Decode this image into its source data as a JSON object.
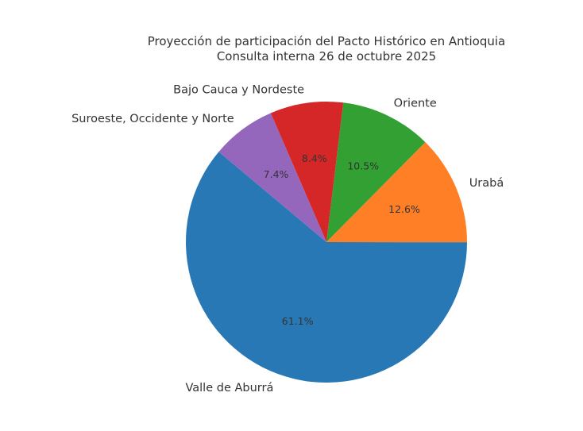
{
  "chart_data": {
    "type": "pie",
    "title": [
      "Proyección de participación del Pacto Histórico en Antioquia",
      "Consulta interna 26 de octubre 2025"
    ],
    "start_angle_deg": 140,
    "direction": "counterclockwise",
    "slices": [
      {
        "label": "Valle de Aburrá",
        "value": 61.1,
        "pct_label": "61.1%",
        "color": "#2878b5"
      },
      {
        "label": "Urabá",
        "value": 12.6,
        "pct_label": "12.6%",
        "color": "#ff7f27"
      },
      {
        "label": "Oriente",
        "value": 10.5,
        "pct_label": "10.5%",
        "color": "#32a032"
      },
      {
        "label": "Bajo Cauca y Nordeste",
        "value": 8.4,
        "pct_label": "8.4%",
        "color": "#d62728"
      },
      {
        "label": "Suroeste, Occidente y Norte",
        "value": 7.4,
        "pct_label": "7.4%",
        "color": "#9467bd"
      }
    ]
  }
}
